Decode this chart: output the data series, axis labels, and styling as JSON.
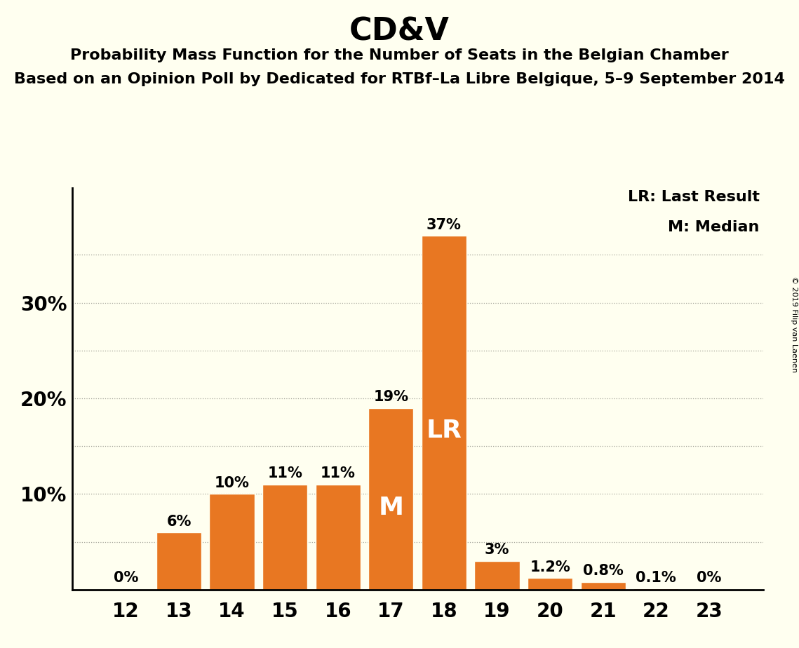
{
  "title": "CD&V",
  "subtitle1": "Probability Mass Function for the Number of Seats in the Belgian Chamber",
  "subtitle2": "Based on an Opinion Poll by Dedicated for RTBf–La Libre Belgique, 5–9 September 2014",
  "copyright": "© 2019 Filip van Laenen",
  "categories": [
    12,
    13,
    14,
    15,
    16,
    17,
    18,
    19,
    20,
    21,
    22,
    23
  ],
  "values": [
    0.0,
    6.0,
    10.0,
    11.0,
    11.0,
    19.0,
    37.0,
    3.0,
    1.2,
    0.8,
    0.1,
    0.0
  ],
  "labels": [
    "0%",
    "6%",
    "10%",
    "11%",
    "11%",
    "19%",
    "37%",
    "3%",
    "1.2%",
    "0.8%",
    "0.1%",
    "0%"
  ],
  "bar_color": "#E87722",
  "background_color": "#FFFFF0",
  "bar_edge_color": "#FFFFF0",
  "axis_color": "#000000",
  "title_fontsize": 32,
  "subtitle_fontsize": 16,
  "label_fontsize": 15,
  "tick_fontsize": 20,
  "ytick_labels": [
    "",
    "10%",
    "20%",
    "30%"
  ],
  "ytick_values": [
    0,
    10,
    20,
    30
  ],
  "ylim": [
    0,
    42
  ],
  "grid_color": "#000000",
  "grid_alpha": 0.35,
  "lr_seat": 18,
  "median_seat": 17,
  "lr_label": "LR",
  "median_label": "M",
  "legend_lr": "LR: Last Result",
  "legend_m": "M: Median",
  "legend_fontsize": 16
}
